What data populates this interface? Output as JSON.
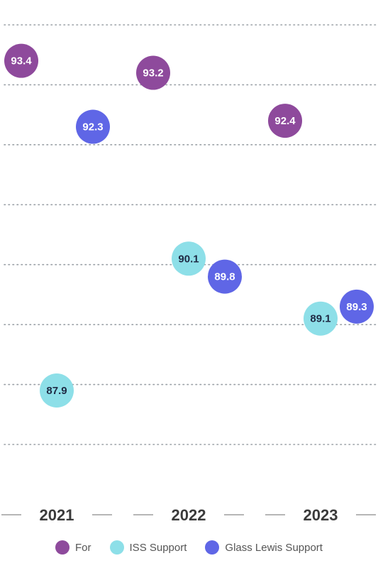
{
  "chart_data": {
    "type": "scatter",
    "categories": [
      "2021",
      "2022",
      "2023"
    ],
    "series": [
      {
        "name": "For",
        "color": "#8e4a9c",
        "text_color": "#ffffff",
        "values": [
          93.4,
          93.2,
          92.4
        ]
      },
      {
        "name": "ISS Support",
        "color": "#8ddfe8",
        "text_color": "#1f2a44",
        "values": [
          87.9,
          90.1,
          89.1
        ]
      },
      {
        "name": "Glass Lewis Support",
        "color": "#5f66e6",
        "text_color": "#ffffff",
        "values": [
          92.3,
          89.8,
          89.3
        ]
      }
    ],
    "ylim": [
      87,
      94
    ],
    "grid": true,
    "legend_position": "bottom"
  }
}
